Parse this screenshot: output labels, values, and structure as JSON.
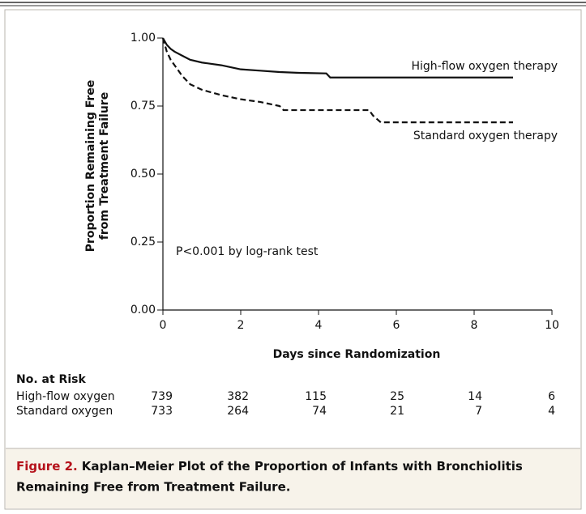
{
  "chart_data": {
    "type": "line",
    "ylabel": [
      "Proportion Remaining Free",
      "from Treatment Failure"
    ],
    "xlabel": "Days since Randomization",
    "annotation": "P<0.001 by log-rank test",
    "xlim": [
      0,
      10
    ],
    "ylim": [
      0,
      1
    ],
    "xticks": [
      0,
      2,
      4,
      6,
      8,
      10
    ],
    "yticks": [
      {
        "value": 0,
        "label": "0.00"
      },
      0.25,
      {
        "value": 0.5,
        "label": "0.50"
      },
      0.75,
      {
        "value": 1,
        "label": "1.00"
      }
    ],
    "series": [
      {
        "name": "High-flow oxygen therapy",
        "color": "#111111",
        "dash": false,
        "x": [
          0,
          0.1,
          0.2,
          0.3,
          0.5,
          0.7,
          1,
          1.5,
          2,
          2.5,
          3,
          3.5,
          4.2,
          4.3,
          9
        ],
        "values": [
          1,
          0.975,
          0.96,
          0.95,
          0.935,
          0.92,
          0.91,
          0.9,
          0.885,
          0.88,
          0.875,
          0.872,
          0.87,
          0.855,
          0.855
        ]
      },
      {
        "name": "Standard oxygen therapy",
        "color": "#111111",
        "dash": true,
        "x": [
          0,
          0.1,
          0.2,
          0.3,
          0.5,
          0.7,
          1,
          1.5,
          2,
          2.5,
          3,
          3.1,
          5.3,
          5.4,
          5.6,
          9
        ],
        "values": [
          1,
          0.95,
          0.92,
          0.9,
          0.86,
          0.83,
          0.81,
          0.79,
          0.775,
          0.765,
          0.75,
          0.735,
          0.735,
          0.715,
          0.69,
          0.69
        ]
      }
    ],
    "risk_table": {
      "title": "No. at Risk",
      "rows": [
        {
          "label": "High-flow oxygen",
          "values": [
            739,
            382,
            115,
            25,
            14,
            6
          ]
        },
        {
          "label": "Standard oxygen",
          "values": [
            733,
            264,
            74,
            21,
            7,
            4
          ]
        }
      ]
    }
  },
  "caption": {
    "label": "Figure 2.",
    "text": "Kaplan–Meier Plot of the Proportion of Infants with Bronchiolitis",
    "text2": "Remaining Free from Treatment Failure."
  }
}
